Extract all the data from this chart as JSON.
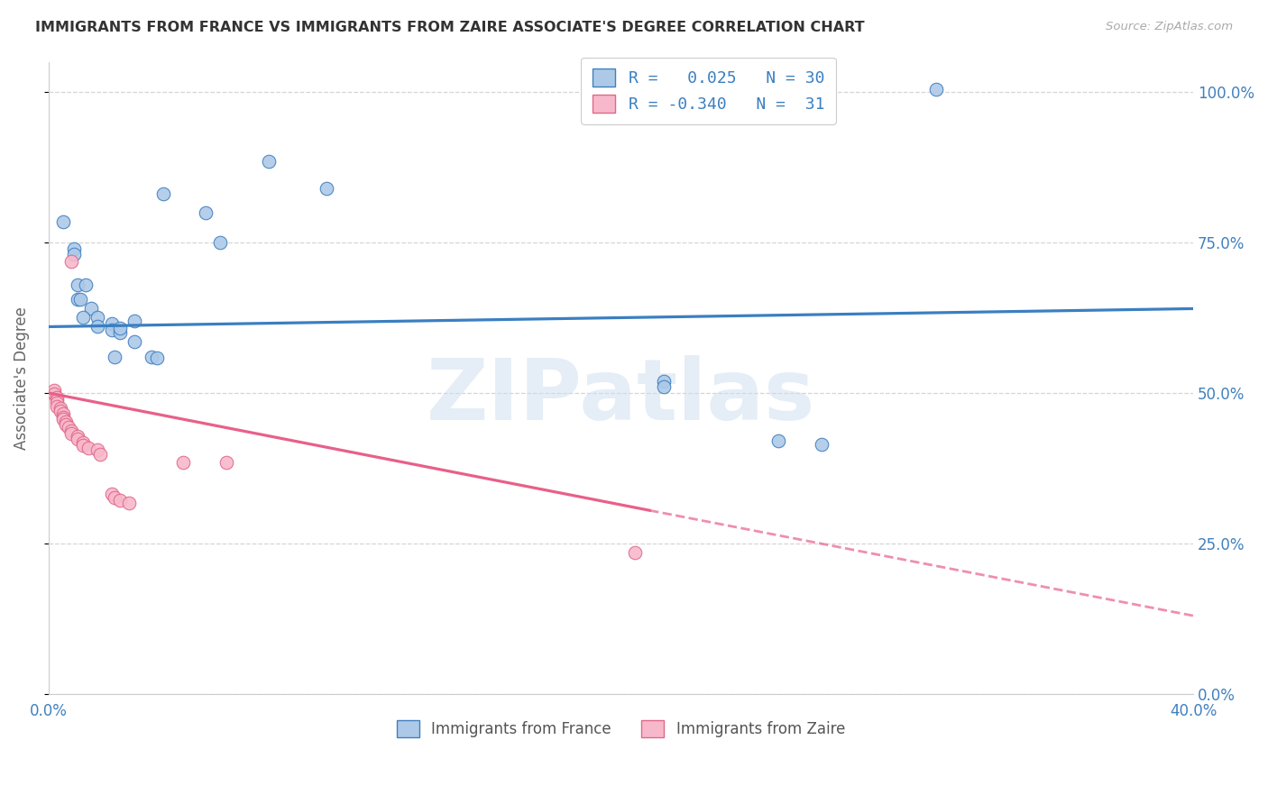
{
  "title": "IMMIGRANTS FROM FRANCE VS IMMIGRANTS FROM ZAIRE ASSOCIATE'S DEGREE CORRELATION CHART",
  "source": "Source: ZipAtlas.com",
  "ylabel": "Associate's Degree",
  "xlim": [
    0.0,
    0.4
  ],
  "ylim": [
    0.0,
    1.05
  ],
  "xtick_vals": [
    0.0,
    0.4
  ],
  "xtick_labels": [
    "0.0%",
    "40.0%"
  ],
  "ytick_vals": [
    0.0,
    0.25,
    0.5,
    0.75,
    1.0
  ],
  "ytick_labels": [
    "0.0%",
    "25.0%",
    "50.0%",
    "75.0%",
    "100.0%"
  ],
  "france_fill": "#adc9e8",
  "france_edge": "#4080bf",
  "zaire_fill": "#f8b8cc",
  "zaire_edge": "#e06888",
  "france_line": "#3a7fc1",
  "zaire_line": "#e8608a",
  "grid_color": "#d5d5d5",
  "france_pts": [
    [
      0.01,
      0.68
    ],
    [
      0.013,
      0.68
    ],
    [
      0.009,
      0.74
    ],
    [
      0.009,
      0.73
    ],
    [
      0.005,
      0.785
    ],
    [
      0.01,
      0.655
    ],
    [
      0.011,
      0.655
    ],
    [
      0.015,
      0.64
    ],
    [
      0.012,
      0.625
    ],
    [
      0.017,
      0.625
    ],
    [
      0.017,
      0.61
    ],
    [
      0.022,
      0.615
    ],
    [
      0.022,
      0.605
    ],
    [
      0.025,
      0.6
    ],
    [
      0.025,
      0.608
    ],
    [
      0.03,
      0.62
    ],
    [
      0.03,
      0.585
    ],
    [
      0.023,
      0.56
    ],
    [
      0.036,
      0.56
    ],
    [
      0.038,
      0.558
    ],
    [
      0.04,
      0.83
    ],
    [
      0.055,
      0.8
    ],
    [
      0.06,
      0.75
    ],
    [
      0.077,
      0.885
    ],
    [
      0.097,
      0.84
    ],
    [
      0.215,
      0.52
    ],
    [
      0.255,
      0.42
    ],
    [
      0.27,
      0.415
    ],
    [
      0.31,
      1.005
    ],
    [
      0.215,
      0.51
    ]
  ],
  "zaire_pts": [
    [
      0.002,
      0.505
    ],
    [
      0.002,
      0.498
    ],
    [
      0.003,
      0.493
    ],
    [
      0.003,
      0.488
    ],
    [
      0.003,
      0.483
    ],
    [
      0.003,
      0.478
    ],
    [
      0.004,
      0.475
    ],
    [
      0.004,
      0.47
    ],
    [
      0.005,
      0.465
    ],
    [
      0.005,
      0.46
    ],
    [
      0.005,
      0.456
    ],
    [
      0.006,
      0.452
    ],
    [
      0.006,
      0.447
    ],
    [
      0.007,
      0.443
    ],
    [
      0.008,
      0.718
    ],
    [
      0.008,
      0.437
    ],
    [
      0.008,
      0.432
    ],
    [
      0.01,
      0.428
    ],
    [
      0.01,
      0.423
    ],
    [
      0.012,
      0.418
    ],
    [
      0.012,
      0.413
    ],
    [
      0.014,
      0.408
    ],
    [
      0.017,
      0.405
    ],
    [
      0.018,
      0.398
    ],
    [
      0.022,
      0.332
    ],
    [
      0.023,
      0.327
    ],
    [
      0.025,
      0.322
    ],
    [
      0.028,
      0.318
    ],
    [
      0.047,
      0.385
    ],
    [
      0.062,
      0.385
    ],
    [
      0.205,
      0.235
    ]
  ],
  "france_line_pts": [
    [
      0.0,
      0.61
    ],
    [
      0.4,
      0.64
    ]
  ],
  "zaire_line_solid": [
    [
      0.0,
      0.5
    ],
    [
      0.21,
      0.305
    ]
  ],
  "zaire_line_dashed": [
    [
      0.21,
      0.305
    ],
    [
      0.4,
      0.13
    ]
  ]
}
